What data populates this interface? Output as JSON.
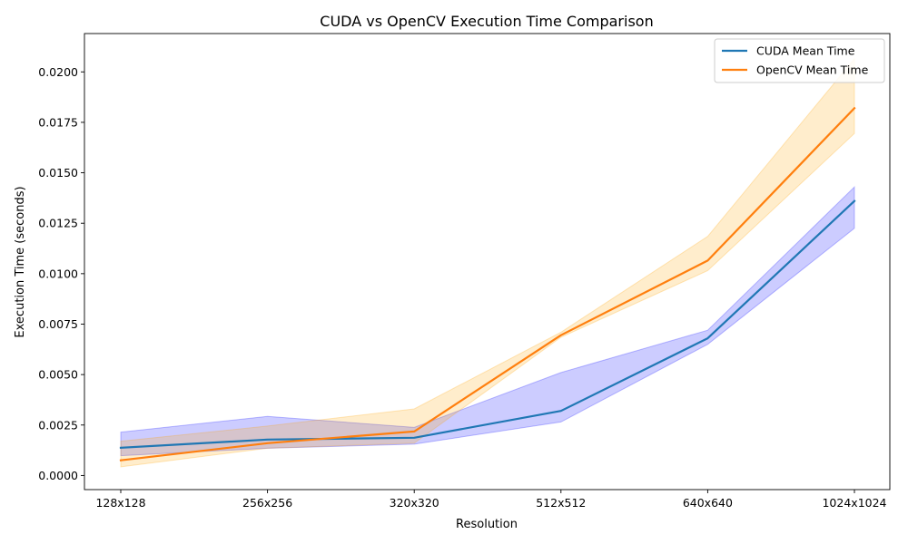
{
  "chart_data": {
    "type": "line",
    "title": "CUDA vs OpenCV Execution Time Comparison",
    "xlabel": "Resolution",
    "ylabel": "Execution Time (seconds)",
    "categories": [
      "128x128",
      "256x256",
      "320x320",
      "512x512",
      "640x640",
      "1024x1024"
    ],
    "ylim": [
      -0.0007,
      0.0219
    ],
    "yticks": [
      0.0,
      0.0025,
      0.005,
      0.0075,
      0.01,
      0.0125,
      0.015,
      0.0175,
      0.02
    ],
    "ytick_labels": [
      "0.0000",
      "0.0025",
      "0.0050",
      "0.0075",
      "0.0100",
      "0.0125",
      "0.0150",
      "0.0175",
      "0.0200"
    ],
    "grid": false,
    "legend_position": "top-right",
    "series": [
      {
        "name": "CUDA Mean Time",
        "color": "#1f77b4",
        "band_color": "#0000ff",
        "values": [
          0.00137,
          0.00178,
          0.00187,
          0.0032,
          0.0068,
          0.0136
        ],
        "lower": [
          0.00098,
          0.00135,
          0.00155,
          0.00265,
          0.0065,
          0.01225
        ],
        "upper": [
          0.00215,
          0.00293,
          0.00238,
          0.0051,
          0.0072,
          0.0143
        ]
      },
      {
        "name": "OpenCV Mean Time",
        "color": "#ff7f0e",
        "band_color": "#ffa500",
        "values": [
          0.00075,
          0.0016,
          0.00218,
          0.00695,
          0.01065,
          0.0182
        ],
        "lower": [
          0.00043,
          0.00135,
          0.0016,
          0.00685,
          0.01015,
          0.01695
        ],
        "upper": [
          0.0017,
          0.00245,
          0.0033,
          0.0071,
          0.01185,
          0.02065
        ]
      }
    ]
  }
}
